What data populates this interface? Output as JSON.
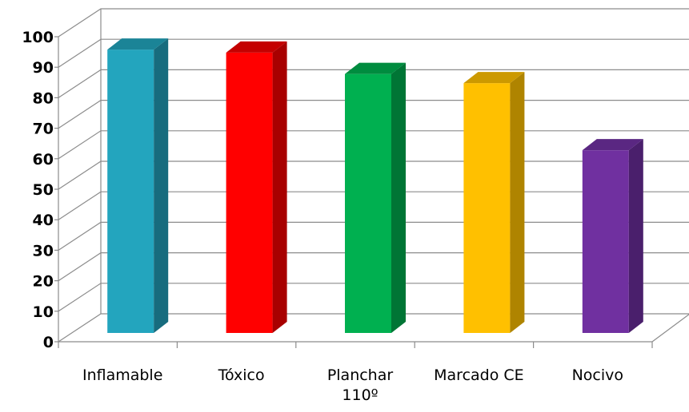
{
  "chart_data": {
    "type": "bar",
    "title": "",
    "xlabel": "",
    "ylabel": "",
    "categories": [
      [
        "Inflamable"
      ],
      [
        "Tóxico"
      ],
      [
        "Planchar",
        "110º"
      ],
      [
        "Marcado CE"
      ],
      [
        "Nocivo"
      ]
    ],
    "values": [
      95,
      94,
      87,
      84,
      62
    ],
    "colors": [
      "#23A5BE",
      "#FF0000",
      "#00B050",
      "#FFC000",
      "#7030A0"
    ],
    "side_colors": [
      "#176C7E",
      "#A80000",
      "#007535",
      "#AF8400",
      "#4A1F6C"
    ],
    "top_colors": [
      "#1B8497",
      "#C40000",
      "#008C3F",
      "#CC9900",
      "#5A2782"
    ],
    "ylim": [
      0,
      100
    ],
    "yticks": [
      0,
      10,
      20,
      30,
      40,
      50,
      60,
      70,
      80,
      90,
      100
    ],
    "grid": true,
    "style": "3d"
  }
}
